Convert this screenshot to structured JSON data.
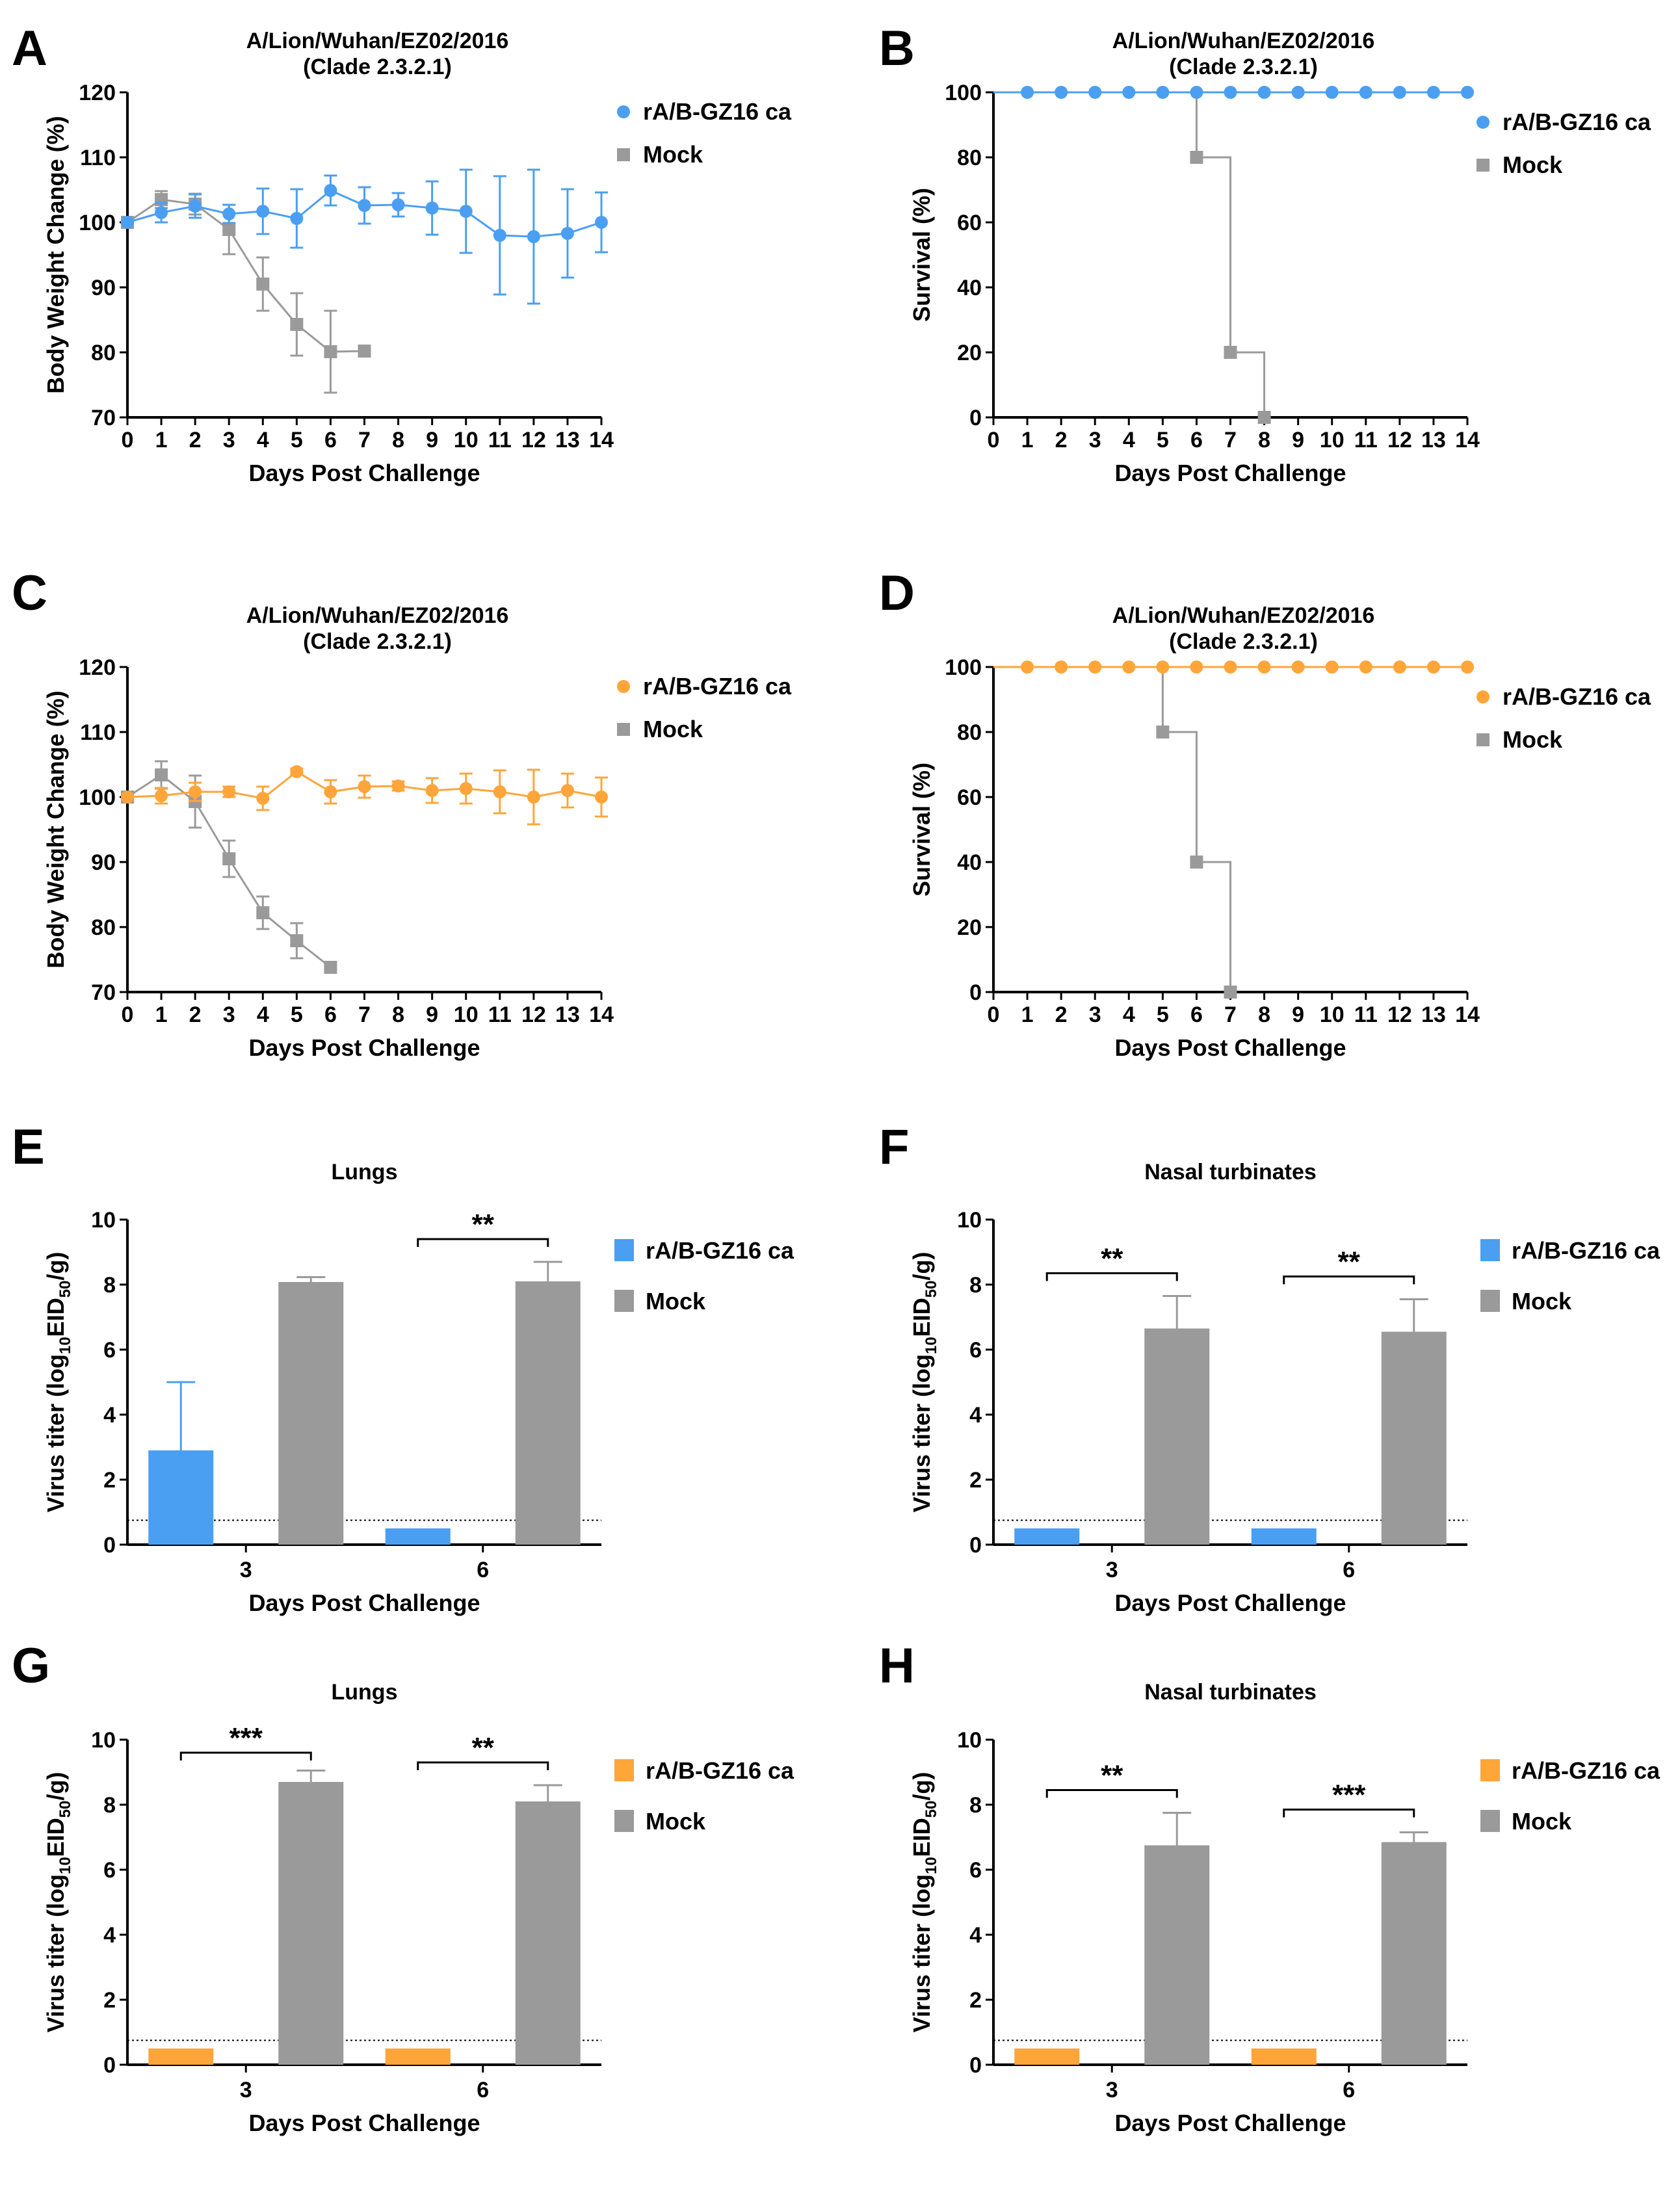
{
  "colors": {
    "blue": "#4a9ff2",
    "orange": "#ffa53a",
    "gray": "#9a9a9a",
    "axis": "#000000"
  },
  "chart_data": [
    {
      "panel": "A",
      "type": "line",
      "title": "A/Lion/Wuhan/EZ02/2016",
      "subtitle": "(Clade 2.3.2.1)",
      "xlabel": "Days Post Challenge",
      "ylabel": "Body Weight Change (%)",
      "xlim": [
        0,
        14
      ],
      "ylim": [
        70,
        120
      ],
      "xticks": [
        0,
        1,
        2,
        3,
        4,
        5,
        6,
        7,
        8,
        9,
        10,
        11,
        12,
        13,
        14
      ],
      "yticks": [
        70,
        80,
        90,
        100,
        110,
        120
      ],
      "series": [
        {
          "name": "rA/B-GZ16 ca",
          "color": "blue",
          "marker": "circle",
          "x": [
            0,
            1,
            2,
            3,
            4,
            5,
            6,
            7,
            8,
            9,
            10,
            11,
            12,
            13,
            14
          ],
          "y": [
            100,
            101.5,
            102.5,
            101.3,
            101.7,
            100.6,
            104.9,
            102.6,
            102.7,
            102.2,
            101.7,
            98,
            97.8,
            98.3,
            100
          ],
          "err": [
            0,
            1.5,
            1.8,
            1.4,
            3.5,
            4.5,
            2.3,
            2.8,
            1.8,
            4.1,
            6.4,
            9.1,
            10.3,
            6.8,
            4.6
          ]
        },
        {
          "name": "Mock",
          "color": "gray",
          "marker": "square",
          "x": [
            0,
            1,
            2,
            3,
            4,
            5,
            6,
            7
          ],
          "y": [
            100,
            103.5,
            102.8,
            98.9,
            90.5,
            84.3,
            80.1,
            80.2
          ],
          "err": [
            0,
            1.3,
            1.6,
            3.8,
            4.1,
            4.8,
            6.3,
            0
          ]
        }
      ]
    },
    {
      "panel": "B",
      "type": "step",
      "title": "A/Lion/Wuhan/EZ02/2016",
      "subtitle": "(Clade 2.3.2.1)",
      "xlabel": "Days Post Challenge",
      "ylabel": "Survival (%)",
      "xlim": [
        0,
        14
      ],
      "ylim": [
        0,
        100
      ],
      "xticks": [
        0,
        1,
        2,
        3,
        4,
        5,
        6,
        7,
        8,
        9,
        10,
        11,
        12,
        13,
        14
      ],
      "yticks": [
        0,
        20,
        40,
        60,
        80,
        100
      ],
      "series": [
        {
          "name": "rA/B-GZ16 ca",
          "color": "blue",
          "marker": "circle",
          "x": [
            1,
            2,
            3,
            4,
            5,
            6,
            7,
            8,
            9,
            10,
            11,
            12,
            13,
            14
          ],
          "y": [
            100,
            100,
            100,
            100,
            100,
            100,
            100,
            100,
            100,
            100,
            100,
            100,
            100,
            100
          ]
        },
        {
          "name": "Mock",
          "color": "gray",
          "marker": "square",
          "x": [
            6,
            7,
            8
          ],
          "y": [
            80,
            20,
            0
          ]
        }
      ]
    },
    {
      "panel": "C",
      "type": "line",
      "title": "A/Lion/Wuhan/EZ02/2016",
      "subtitle": "(Clade 2.3.2.1)",
      "xlabel": "Days Post Challenge",
      "ylabel": "Body Weight Change (%)",
      "xlim": [
        0,
        14
      ],
      "ylim": [
        70,
        120
      ],
      "xticks": [
        0,
        1,
        2,
        3,
        4,
        5,
        6,
        7,
        8,
        9,
        10,
        11,
        12,
        13,
        14
      ],
      "yticks": [
        70,
        80,
        90,
        100,
        110,
        120
      ],
      "series": [
        {
          "name": "rA/B-GZ16 ca",
          "color": "orange",
          "marker": "circle",
          "x": [
            0,
            1,
            2,
            3,
            4,
            5,
            6,
            7,
            8,
            9,
            10,
            11,
            12,
            13,
            14
          ],
          "y": [
            100,
            100.2,
            100.8,
            100.8,
            99.8,
            103.9,
            100.8,
            101.6,
            101.7,
            101,
            101.3,
            100.8,
            100,
            101,
            100
          ],
          "err": [
            0,
            1.2,
            1.4,
            0.8,
            1.8,
            0.5,
            1.8,
            1.7,
            0.7,
            1.9,
            2.3,
            3.3,
            4.2,
            2.6,
            3
          ]
        },
        {
          "name": "Mock",
          "color": "gray",
          "marker": "square",
          "x": [
            0,
            1,
            2,
            3,
            4,
            5,
            6
          ],
          "y": [
            100,
            103.4,
            99.3,
            90.5,
            82.2,
            77.9,
            73.8
          ],
          "err": [
            0,
            2.1,
            4,
            2.8,
            2.5,
            2.7,
            0
          ]
        }
      ]
    },
    {
      "panel": "D",
      "type": "step",
      "title": "A/Lion/Wuhan/EZ02/2016",
      "subtitle": "(Clade 2.3.2.1)",
      "xlabel": "Days Post Challenge",
      "ylabel": "Survival (%)",
      "xlim": [
        0,
        14
      ],
      "ylim": [
        0,
        100
      ],
      "xticks": [
        0,
        1,
        2,
        3,
        4,
        5,
        6,
        7,
        8,
        9,
        10,
        11,
        12,
        13,
        14
      ],
      "yticks": [
        0,
        20,
        40,
        60,
        80,
        100
      ],
      "series": [
        {
          "name": "rA/B-GZ16 ca",
          "color": "orange",
          "marker": "circle",
          "x": [
            1,
            2,
            3,
            4,
            5,
            6,
            7,
            8,
            9,
            10,
            11,
            12,
            13,
            14
          ],
          "y": [
            100,
            100,
            100,
            100,
            100,
            100,
            100,
            100,
            100,
            100,
            100,
            100,
            100,
            100
          ]
        },
        {
          "name": "Mock",
          "color": "gray",
          "marker": "square",
          "x": [
            5,
            6,
            7
          ],
          "y": [
            80,
            40,
            0
          ]
        }
      ]
    },
    {
      "panel": "E",
      "type": "bar",
      "title": "Lungs",
      "xlabel": "Days Post Challenge",
      "ylabel_main": "Virus titer (log",
      "ylabel_sub1": "10",
      "ylabel_mid": "EID",
      "ylabel_sub2": "50",
      "ylabel_end": "/g)",
      "categories": [
        "3",
        "6"
      ],
      "ylim": [
        0,
        10
      ],
      "yticks": [
        0,
        2,
        4,
        6,
        8,
        10
      ],
      "detection_limit": 0.75,
      "series": [
        {
          "name": "rA/B-GZ16 ca",
          "color": "blue",
          "values": [
            2.9,
            0.5
          ],
          "err": [
            2.1,
            0
          ]
        },
        {
          "name": "Mock",
          "color": "gray",
          "values": [
            8.08,
            8.1
          ],
          "err": [
            0.15,
            0.6
          ]
        }
      ],
      "significance": [
        {
          "category": "3",
          "label": ""
        },
        {
          "category": "6",
          "label": "**"
        }
      ]
    },
    {
      "panel": "F",
      "type": "bar",
      "title": "Nasal turbinates",
      "xlabel": "Days Post Challenge",
      "ylabel_main": "Virus titer (log",
      "ylabel_sub1": "10",
      "ylabel_mid": "EID",
      "ylabel_sub2": "50",
      "ylabel_end": "/g)",
      "categories": [
        "3",
        "6"
      ],
      "ylim": [
        0,
        10
      ],
      "yticks": [
        0,
        2,
        4,
        6,
        8,
        10
      ],
      "detection_limit": 0.75,
      "series": [
        {
          "name": "rA/B-GZ16 ca",
          "color": "blue",
          "values": [
            0.5,
            0.5
          ],
          "err": [
            0,
            0
          ]
        },
        {
          "name": "Mock",
          "color": "gray",
          "values": [
            6.65,
            6.55
          ],
          "err": [
            1.0,
            1.0
          ]
        }
      ],
      "significance": [
        {
          "category": "3",
          "label": "**"
        },
        {
          "category": "6",
          "label": "**"
        }
      ]
    },
    {
      "panel": "G",
      "type": "bar",
      "title": "Lungs",
      "xlabel": "Days Post Challenge",
      "ylabel_main": "Virus titer (log",
      "ylabel_sub1": "10",
      "ylabel_mid": "EID",
      "ylabel_sub2": "50",
      "ylabel_end": "/g)",
      "categories": [
        "3",
        "6"
      ],
      "ylim": [
        0,
        10
      ],
      "yticks": [
        0,
        2,
        4,
        6,
        8,
        10
      ],
      "detection_limit": 0.75,
      "series": [
        {
          "name": "rA/B-GZ16 ca",
          "color": "orange",
          "values": [
            0.5,
            0.5
          ],
          "err": [
            0,
            0
          ]
        },
        {
          "name": "Mock",
          "color": "gray",
          "values": [
            8.7,
            8.1
          ],
          "err": [
            0.35,
            0.5
          ]
        }
      ],
      "significance": [
        {
          "category": "3",
          "label": "***"
        },
        {
          "category": "6",
          "label": "**"
        }
      ]
    },
    {
      "panel": "H",
      "type": "bar",
      "title": "Nasal turbinates",
      "xlabel": "Days Post Challenge",
      "ylabel_main": "Virus titer (log",
      "ylabel_sub1": "10",
      "ylabel_mid": "EID",
      "ylabel_sub2": "50",
      "ylabel_end": "/g)",
      "categories": [
        "3",
        "6"
      ],
      "ylim": [
        0,
        10
      ],
      "yticks": [
        0,
        2,
        4,
        6,
        8,
        10
      ],
      "detection_limit": 0.75,
      "series": [
        {
          "name": "rA/B-GZ16 ca",
          "color": "orange",
          "values": [
            0.5,
            0.5
          ],
          "err": [
            0,
            0
          ]
        },
        {
          "name": "Mock",
          "color": "gray",
          "values": [
            6.75,
            6.85
          ],
          "err": [
            1.0,
            0.3
          ]
        }
      ],
      "significance": [
        {
          "category": "3",
          "label": "**"
        },
        {
          "category": "6",
          "label": "***"
        }
      ]
    }
  ]
}
